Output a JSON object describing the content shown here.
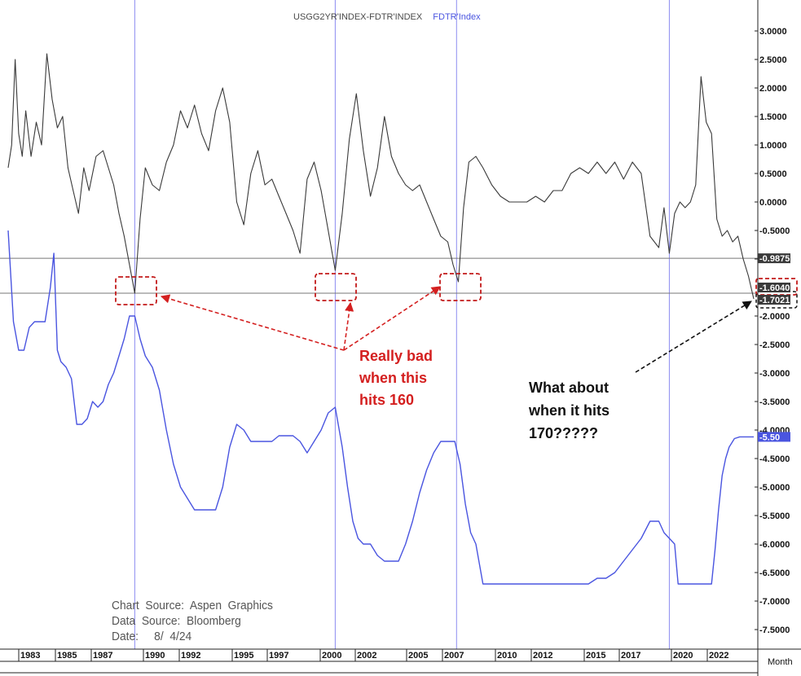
{
  "legend": {
    "series1": "USGG2YR'INDEX-FDTR'INDEX",
    "series2": "FDTR'Index"
  },
  "annotations": {
    "red": [
      "Really bad",
      "when this",
      "hits 160"
    ],
    "black": [
      "What about",
      "when it hits",
      "170?????"
    ]
  },
  "source": {
    "line1": "Chart  Source:  Aspen  Graphics",
    "line2": "Data  Source:  Bloomberg",
    "line3": "Date:     8/  4/24"
  },
  "month_label": "Month",
  "colors": {
    "spread": "#3a3a3a",
    "fedfunds": "#4a55e0",
    "callout": "#d42020",
    "grid": "#8c8cf0"
  },
  "chart_data": {
    "type": "line",
    "x_ticks": [
      "1983",
      "1985",
      "1987",
      "1990",
      "1992",
      "1995",
      "1997",
      "2000",
      "2002",
      "2005",
      "2007",
      "2010",
      "2012",
      "2015",
      "2017",
      "2020",
      "2022"
    ],
    "y_ticks": [
      "3.0000",
      "2.5000",
      "2.0000",
      "1.5000",
      "1.0000",
      "0.5000",
      "0.0000",
      "-0.5000",
      "-1.0000",
      "-2.0000",
      "-2.5000",
      "-3.0000",
      "-3.5000",
      "-4.0000",
      "-4.5000",
      "-5.0000",
      "-5.5000",
      "-6.0000",
      "-6.5000",
      "-7.0000",
      "-7.5000"
    ],
    "ylim": [
      -8.0,
      3.5
    ],
    "xlim": [
      1982.0,
      2024.6
    ],
    "hlines": [
      -0.9875,
      -1.6
    ],
    "vlines": [
      1989.2,
      2000.6,
      2007.5,
      2019.6
    ],
    "value_tags": [
      {
        "label": "-0.9875",
        "value": -0.9875,
        "style": "dark"
      },
      {
        "label": "-1.6040",
        "value": -1.604,
        "style": "dark"
      },
      {
        "label": "-1.7021",
        "value": -1.7021,
        "style": "dark"
      },
      {
        "label": "-5.50",
        "value": -4.12,
        "style": "blue"
      }
    ],
    "series": [
      {
        "name": "USGG2YR'INDEX-FDTR'INDEX",
        "x": [
          1982.0,
          1982.2,
          1982.4,
          1982.6,
          1982.8,
          1983.0,
          1983.3,
          1983.6,
          1983.9,
          1984.2,
          1984.5,
          1984.8,
          1985.1,
          1985.4,
          1985.7,
          1986.0,
          1986.3,
          1986.6,
          1987.0,
          1987.4,
          1987.7,
          1988.0,
          1988.3,
          1988.6,
          1988.9,
          1989.2,
          1989.5,
          1989.8,
          1990.2,
          1990.6,
          1991.0,
          1991.4,
          1991.8,
          1992.2,
          1992.6,
          1993.0,
          1993.4,
          1993.8,
          1994.2,
          1994.6,
          1995.0,
          1995.4,
          1995.8,
          1996.2,
          1996.6,
          1997.0,
          1997.4,
          1997.8,
          1998.2,
          1998.6,
          1999.0,
          1999.4,
          1999.8,
          2000.2,
          2000.6,
          2001.0,
          2001.4,
          2001.8,
          2002.2,
          2002.6,
          2003.0,
          2003.4,
          2003.8,
          2004.2,
          2004.6,
          2005.0,
          2005.4,
          2005.8,
          2006.2,
          2006.6,
          2007.0,
          2007.3,
          2007.6,
          2007.9,
          2008.2,
          2008.6,
          2009.0,
          2009.5,
          2010.0,
          2010.5,
          2011.0,
          2011.5,
          2012.0,
          2012.5,
          2013.0,
          2013.5,
          2014.0,
          2014.5,
          2015.0,
          2015.5,
          2016.0,
          2016.5,
          2017.0,
          2017.5,
          2018.0,
          2018.5,
          2019.0,
          2019.3,
          2019.6,
          2019.9,
          2020.2,
          2020.5,
          2020.8,
          2021.1,
          2021.4,
          2021.7,
          2022.0,
          2022.3,
          2022.6,
          2022.9,
          2023.2,
          2023.5,
          2023.8,
          2024.1,
          2024.4
        ],
        "values": [
          0.6,
          1.0,
          2.5,
          1.2,
          0.8,
          1.6,
          0.8,
          1.4,
          1.0,
          2.6,
          1.8,
          1.3,
          1.5,
          0.6,
          0.2,
          -0.2,
          0.6,
          0.2,
          0.8,
          0.9,
          0.6,
          0.3,
          -0.2,
          -0.6,
          -1.1,
          -1.6,
          -0.3,
          0.6,
          0.3,
          0.2,
          0.7,
          1.0,
          1.6,
          1.3,
          1.7,
          1.2,
          0.9,
          1.6,
          2.0,
          1.4,
          0.0,
          -0.4,
          0.5,
          0.9,
          0.3,
          0.4,
          0.1,
          -0.2,
          -0.5,
          -0.9,
          0.4,
          0.7,
          0.2,
          -0.5,
          -1.2,
          -0.2,
          1.1,
          1.9,
          0.9,
          0.1,
          0.6,
          1.5,
          0.8,
          0.5,
          0.3,
          0.2,
          0.3,
          0.0,
          -0.3,
          -0.6,
          -0.7,
          -1.1,
          -1.4,
          -0.1,
          0.7,
          0.8,
          0.6,
          0.3,
          0.1,
          0.0,
          0.0,
          0.0,
          0.1,
          0.0,
          0.2,
          0.2,
          0.5,
          0.6,
          0.5,
          0.7,
          0.5,
          0.7,
          0.4,
          0.7,
          0.5,
          -0.6,
          -0.8,
          -0.1,
          -0.9,
          -0.2,
          0.0,
          -0.1,
          0.0,
          0.3,
          2.2,
          1.4,
          1.2,
          -0.3,
          -0.6,
          -0.5,
          -0.7,
          -0.6,
          -1.0,
          -1.3,
          -1.7
        ]
      },
      {
        "name": "FDTR'Index",
        "x": [
          1982.0,
          1982.3,
          1982.6,
          1982.9,
          1983.2,
          1983.5,
          1983.8,
          1984.1,
          1984.4,
          1984.6,
          1984.8,
          1985.0,
          1985.3,
          1985.6,
          1985.9,
          1986.2,
          1986.5,
          1986.8,
          1987.1,
          1987.4,
          1987.7,
          1988.0,
          1988.3,
          1988.6,
          1988.9,
          1989.2,
          1989.5,
          1989.8,
          1990.2,
          1990.6,
          1991.0,
          1991.4,
          1991.8,
          1992.2,
          1992.6,
          1993.0,
          1993.4,
          1993.8,
          1994.2,
          1994.6,
          1995.0,
          1995.4,
          1995.8,
          1996.2,
          1996.6,
          1997.0,
          1997.4,
          1997.8,
          1998.2,
          1998.6,
          1999.0,
          1999.4,
          1999.8,
          2000.2,
          2000.6,
          2001.0,
          2001.3,
          2001.6,
          2001.9,
          2002.2,
          2002.6,
          2003.0,
          2003.4,
          2003.8,
          2004.2,
          2004.6,
          2005.0,
          2005.4,
          2005.8,
          2006.2,
          2006.6,
          2007.0,
          2007.4,
          2007.7,
          2008.0,
          2008.3,
          2008.6,
          2009.0,
          2010.0,
          2011.0,
          2012.0,
          2013.0,
          2014.0,
          2015.0,
          2015.5,
          2016.0,
          2016.5,
          2017.0,
          2017.5,
          2018.0,
          2018.5,
          2019.0,
          2019.3,
          2019.6,
          2019.9,
          2020.1,
          2020.4,
          2020.8,
          2021.2,
          2021.6,
          2022.0,
          2022.2,
          2022.4,
          2022.6,
          2022.8,
          2023.0,
          2023.3,
          2023.6,
          2024.0,
          2024.4
        ],
        "values": [
          -0.5,
          -2.1,
          -2.6,
          -2.6,
          -2.2,
          -2.1,
          -2.1,
          -2.1,
          -1.5,
          -0.9,
          -2.6,
          -2.8,
          -2.9,
          -3.1,
          -3.9,
          -3.9,
          -3.8,
          -3.5,
          -3.6,
          -3.5,
          -3.2,
          -3.0,
          -2.7,
          -2.4,
          -2.0,
          -2.0,
          -2.4,
          -2.7,
          -2.9,
          -3.3,
          -4.0,
          -4.6,
          -5.0,
          -5.2,
          -5.4,
          -5.4,
          -5.4,
          -5.4,
          -5.0,
          -4.3,
          -3.9,
          -4.0,
          -4.2,
          -4.2,
          -4.2,
          -4.2,
          -4.1,
          -4.1,
          -4.1,
          -4.2,
          -4.4,
          -4.2,
          -4.0,
          -3.7,
          -3.6,
          -4.3,
          -5.0,
          -5.6,
          -5.9,
          -6.0,
          -6.0,
          -6.2,
          -6.3,
          -6.3,
          -6.3,
          -6.0,
          -5.6,
          -5.1,
          -4.7,
          -4.4,
          -4.2,
          -4.2,
          -4.2,
          -4.6,
          -5.3,
          -5.8,
          -6.0,
          -6.7,
          -6.7,
          -6.7,
          -6.7,
          -6.7,
          -6.7,
          -6.7,
          -6.6,
          -6.6,
          -6.5,
          -6.3,
          -6.1,
          -5.9,
          -5.6,
          -5.6,
          -5.8,
          -5.9,
          -6.0,
          -6.7,
          -6.7,
          -6.7,
          -6.7,
          -6.7,
          -6.7,
          -6.1,
          -5.4,
          -4.8,
          -4.5,
          -4.3,
          -4.15,
          -4.12,
          -4.12,
          -4.12
        ]
      }
    ]
  }
}
